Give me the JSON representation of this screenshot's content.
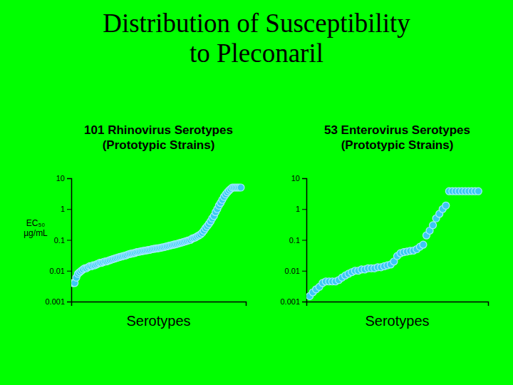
{
  "title": [
    "Distribution of Susceptibility",
    "to Pleconaril"
  ],
  "chart_data": [
    {
      "type": "scatter",
      "title": [
        "101 Rhinovirus Serotypes",
        "(Prototypic Strains)"
      ],
      "ylabel": [
        "EC₅₀",
        "µg/mL"
      ],
      "xlabel": "Serotypes",
      "log": "y",
      "ylim": [
        0.001,
        10
      ],
      "yticks": [
        0.001,
        0.01,
        0.1,
        1,
        10
      ],
      "tick_labels": "y",
      "color": "#3cc8f5",
      "marker": "circle",
      "values": [
        0.004,
        0.004,
        0.006,
        0.008,
        0.009,
        0.01,
        0.011,
        0.012,
        0.012,
        0.013,
        0.014,
        0.014,
        0.015,
        0.015,
        0.016,
        0.017,
        0.018,
        0.018,
        0.019,
        0.02,
        0.02,
        0.021,
        0.022,
        0.023,
        0.024,
        0.025,
        0.026,
        0.027,
        0.028,
        0.029,
        0.03,
        0.031,
        0.032,
        0.034,
        0.035,
        0.036,
        0.037,
        0.038,
        0.04,
        0.041,
        0.042,
        0.043,
        0.044,
        0.045,
        0.046,
        0.047,
        0.048,
        0.05,
        0.051,
        0.052,
        0.053,
        0.054,
        0.055,
        0.057,
        0.058,
        0.06,
        0.062,
        0.064,
        0.066,
        0.068,
        0.07,
        0.072,
        0.074,
        0.077,
        0.08,
        0.083,
        0.086,
        0.09,
        0.093,
        0.097,
        0.1,
        0.11,
        0.115,
        0.12,
        0.13,
        0.14,
        0.15,
        0.17,
        0.2,
        0.24,
        0.28,
        0.33,
        0.4,
        0.5,
        0.6,
        0.8,
        1,
        1.3,
        1.6,
        2,
        2.5,
        3,
        3.5,
        4,
        4.5,
        5,
        5,
        5,
        5,
        5,
        5
      ]
    },
    {
      "type": "scatter",
      "title": [
        "53 Enterovirus Serotypes",
        "(Prototypic Strains)"
      ],
      "xlabel": "Serotypes",
      "log": "y",
      "ylim": [
        0.001,
        10
      ],
      "yticks": [
        0.001,
        0.01,
        0.1,
        1,
        10
      ],
      "tick_labels": "y",
      "color": "#3cc8f5",
      "marker": "circle",
      "values": [
        0.0015,
        0.002,
        0.0025,
        0.003,
        0.004,
        0.0045,
        0.0045,
        0.0045,
        0.0045,
        0.005,
        0.006,
        0.007,
        0.008,
        0.009,
        0.01,
        0.01,
        0.011,
        0.011,
        0.012,
        0.012,
        0.012,
        0.013,
        0.013,
        0.014,
        0.015,
        0.016,
        0.02,
        0.03,
        0.037,
        0.04,
        0.042,
        0.044,
        0.045,
        0.05,
        0.06,
        0.07,
        0.14,
        0.2,
        0.3,
        0.5,
        0.7,
        1,
        1.3,
        3.8,
        3.8,
        3.8,
        3.8,
        3.8,
        3.8,
        3.8,
        3.8,
        3.8,
        3.8
      ]
    }
  ]
}
